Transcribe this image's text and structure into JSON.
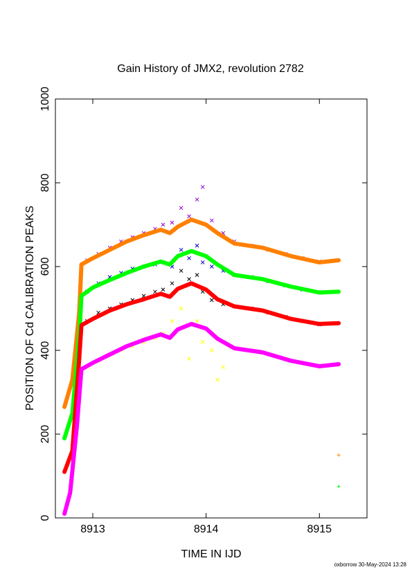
{
  "chart_data": {
    "type": "scatter",
    "title": "Gain History of JMX2, revolution 2782",
    "xlabel": "TIME IN IJD",
    "ylabel": "POSITION OF Cd CALIBRATION PEAKS",
    "footer": "oxborrow 30-May-2024 13:28",
    "xlim": [
      8912.67,
      8915.42
    ],
    "ylim": [
      0,
      1000
    ],
    "xticks": [
      "8913",
      "8914",
      "8915"
    ],
    "yticks": [
      "0",
      "200",
      "400",
      "600",
      "800",
      "1000"
    ],
    "grid": false,
    "series": [
      {
        "kind": "points",
        "color": "#9400d3",
        "x": [
          8912.95,
          8913.05,
          8913.15,
          8913.25,
          8913.35,
          8913.45,
          8913.55,
          8913.62,
          8913.7,
          8913.78,
          8913.85,
          8913.92,
          8913.97,
          8914.05,
          8914.15,
          8914.25,
          8914.4,
          8914.55,
          8914.7,
          8914.85,
          8915.0,
          8915.15
        ],
        "y": [
          615,
          630,
          645,
          660,
          670,
          680,
          690,
          700,
          705,
          740,
          720,
          760,
          790,
          710,
          680,
          660,
          650,
          640,
          630,
          620,
          612,
          615
        ]
      },
      {
        "kind": "points",
        "color": "#0000cd",
        "x": [
          8912.95,
          8913.05,
          8913.15,
          8913.25,
          8913.35,
          8913.45,
          8913.55,
          8913.62,
          8913.7,
          8913.78,
          8913.85,
          8913.92,
          8913.97,
          8914.05,
          8914.15,
          8914.25,
          8914.4,
          8914.55,
          8914.7,
          8914.85,
          8915.0,
          8915.15
        ],
        "y": [
          540,
          560,
          575,
          585,
          595,
          600,
          605,
          610,
          600,
          640,
          620,
          650,
          610,
          600,
          590,
          580,
          575,
          565,
          555,
          545,
          538,
          540
        ]
      },
      {
        "kind": "points",
        "color": "#000000",
        "x": [
          8912.95,
          8913.05,
          8913.15,
          8913.25,
          8913.35,
          8913.45,
          8913.55,
          8913.62,
          8913.7,
          8913.78,
          8913.85,
          8913.92,
          8913.97,
          8914.05,
          8914.15,
          8914.25,
          8914.4,
          8914.55,
          8914.7,
          8914.85,
          8915.0,
          8915.15
        ],
        "y": [
          470,
          490,
          500,
          510,
          520,
          530,
          540,
          545,
          560,
          590,
          570,
          580,
          540,
          520,
          510,
          505,
          500,
          490,
          480,
          470,
          462,
          465
        ]
      },
      {
        "kind": "points",
        "color": "#ffff00",
        "x": [
          8912.95,
          8913.05,
          8913.15,
          8913.25,
          8913.35,
          8913.45,
          8913.55,
          8913.62,
          8913.7,
          8913.78,
          8913.85,
          8913.92,
          8913.97,
          8914.05,
          8914.1,
          8914.15,
          8914.25,
          8914.4,
          8914.55,
          8914.7,
          8914.85,
          8915.0,
          8915.15
        ],
        "y": [
          360,
          375,
          390,
          400,
          410,
          420,
          430,
          440,
          470,
          500,
          380,
          470,
          420,
          400,
          330,
          360,
          405,
          400,
          390,
          380,
          370,
          362,
          365
        ]
      },
      {
        "kind": "points-plus",
        "color": "#ff8c00",
        "x": [
          8915.17
        ],
        "y": [
          150
        ]
      },
      {
        "kind": "points-plus",
        "color": "#00ff00",
        "x": [
          8915.17
        ],
        "y": [
          75
        ]
      },
      {
        "kind": "curve",
        "color": "#ff8000",
        "x": [
          8912.75,
          8912.82,
          8912.88,
          8912.9,
          8913.0,
          8913.15,
          8913.3,
          8913.45,
          8913.6,
          8913.68,
          8913.75,
          8913.87,
          8914.0,
          8914.1,
          8914.25,
          8914.5,
          8914.75,
          8915.0,
          8915.17
        ],
        "y": [
          265,
          330,
          490,
          605,
          620,
          640,
          660,
          675,
          688,
          680,
          695,
          712,
          700,
          680,
          655,
          645,
          625,
          610,
          615
        ]
      },
      {
        "kind": "curve",
        "color": "#00ff00",
        "x": [
          8912.75,
          8912.82,
          8912.88,
          8912.9,
          8913.0,
          8913.15,
          8913.3,
          8913.45,
          8913.6,
          8913.68,
          8913.75,
          8913.87,
          8914.0,
          8914.1,
          8914.25,
          8914.5,
          8914.75,
          8915.0,
          8915.17
        ],
        "y": [
          190,
          250,
          430,
          530,
          550,
          568,
          585,
          600,
          612,
          605,
          625,
          637,
          625,
          605,
          580,
          570,
          552,
          538,
          540
        ]
      },
      {
        "kind": "curve",
        "color": "#ff0000",
        "x": [
          8912.75,
          8912.82,
          8912.88,
          8912.9,
          8913.0,
          8913.15,
          8913.3,
          8913.45,
          8913.6,
          8913.68,
          8913.75,
          8913.87,
          8914.0,
          8914.1,
          8914.25,
          8914.5,
          8914.75,
          8915.0,
          8915.17
        ],
        "y": [
          110,
          160,
          380,
          460,
          475,
          495,
          510,
          522,
          535,
          528,
          547,
          560,
          545,
          522,
          505,
          495,
          475,
          463,
          465
        ]
      },
      {
        "kind": "curve",
        "color": "#ff00ff",
        "x": [
          8912.75,
          8912.8,
          8912.86,
          8912.9,
          8913.0,
          8913.15,
          8913.3,
          8913.45,
          8913.6,
          8913.68,
          8913.75,
          8913.87,
          8914.0,
          8914.1,
          8914.25,
          8914.5,
          8914.75,
          8915.0,
          8915.17
        ],
        "y": [
          10,
          60,
          220,
          355,
          370,
          390,
          410,
          425,
          438,
          430,
          450,
          463,
          452,
          428,
          405,
          395,
          375,
          362,
          367
        ]
      }
    ]
  }
}
